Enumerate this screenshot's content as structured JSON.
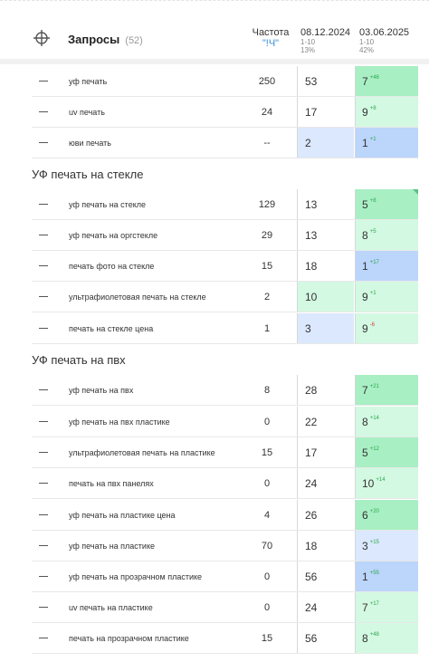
{
  "header": {
    "title": "Запросы",
    "count": "(52)",
    "freq_label": "Частота",
    "freq_operator": "\"!Ч\"",
    "dates": [
      {
        "date": "08.12.2024",
        "range": "1-10",
        "pct": "13%"
      },
      {
        "date": "03.06.2025",
        "range": "1-10",
        "pct": "42%"
      }
    ]
  },
  "colors": {
    "green_strong": "#a8efc4",
    "green_light": "#d3f9e2",
    "blue_strong": "#bcd5fb",
    "blue_light": "#dbe8fd",
    "positive": "#2ba84a",
    "negative": "#e0393e"
  },
  "groups": [
    {
      "title": "",
      "rows": [
        {
          "query": "уф печать",
          "freq": "250",
          "pos1": "53",
          "pos2": "7",
          "delta": "+46"
        },
        {
          "query": "uv печать",
          "freq": "24",
          "pos1": "17",
          "pos2": "9",
          "delta": "+8"
        },
        {
          "query": "юви печать",
          "freq": "--",
          "pos1": "2",
          "pos2": "1",
          "delta": "+1"
        }
      ]
    },
    {
      "title": "УФ печать на стекле",
      "rows": [
        {
          "query": "уф печать на стекле",
          "freq": "129",
          "pos1": "13",
          "pos2": "5",
          "delta": "+8"
        },
        {
          "query": "уф печать на оргстекле",
          "freq": "29",
          "pos1": "13",
          "pos2": "8",
          "delta": "+5"
        },
        {
          "query": "печать фото на стекле",
          "freq": "15",
          "pos1": "18",
          "pos2": "1",
          "delta": "+17"
        },
        {
          "query": "ультрафиолетовая печать на стекле",
          "freq": "2",
          "pos1": "10",
          "pos2": "9",
          "delta": "+1"
        },
        {
          "query": "печать на стекле цена",
          "freq": "1",
          "pos1": "3",
          "pos2": "9",
          "delta": "-6"
        }
      ]
    },
    {
      "title": "УФ печать на пвх",
      "rows": [
        {
          "query": "уф печать на пвх",
          "freq": "8",
          "pos1": "28",
          "pos2": "7",
          "delta": "+21"
        },
        {
          "query": "уф печать на пвх пластике",
          "freq": "0",
          "pos1": "22",
          "pos2": "8",
          "delta": "+14"
        },
        {
          "query": "ультрафиолетовая печать на пластике",
          "freq": "15",
          "pos1": "17",
          "pos2": "5",
          "delta": "+12"
        },
        {
          "query": "печать на пвх панелях",
          "freq": "0",
          "pos1": "24",
          "pos2": "10",
          "delta": "+14"
        },
        {
          "query": "уф печать на пластике цена",
          "freq": "4",
          "pos1": "26",
          "pos2": "6",
          "delta": "+20"
        },
        {
          "query": "уф печать на пластике",
          "freq": "70",
          "pos1": "18",
          "pos2": "3",
          "delta": "+15"
        },
        {
          "query": "уф печать на прозрачном пластике",
          "freq": "0",
          "pos1": "56",
          "pos2": "1",
          "delta": "+55"
        },
        {
          "query": "uv печать на пластике",
          "freq": "0",
          "pos1": "24",
          "pos2": "7",
          "delta": "+17"
        },
        {
          "query": "печать на прозрачном пластике",
          "freq": "15",
          "pos1": "56",
          "pos2": "8",
          "delta": "+48"
        }
      ]
    }
  ]
}
